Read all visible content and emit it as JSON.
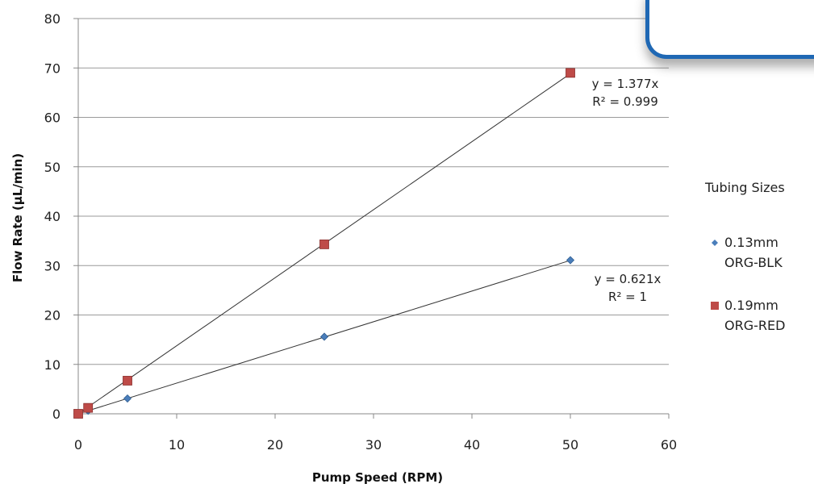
{
  "chart_data": {
    "type": "scatter",
    "xlabel": "Pump Speed (RPM)",
    "ylabel": "Flow Rate (µL/min)",
    "xlim": [
      0,
      60
    ],
    "ylim": [
      0,
      80
    ],
    "x_ticks": [
      "0",
      "10",
      "20",
      "30",
      "40",
      "50",
      "60"
    ],
    "y_ticks": [
      "0",
      "10",
      "20",
      "30",
      "40",
      "50",
      "60",
      "70",
      "80"
    ],
    "grid": "horizontal",
    "legend": {
      "title": "Tubing Sizes",
      "placement": "right"
    },
    "series": [
      {
        "name": "0.13mm ORG-BLK",
        "name_lines": [
          "0.13mm",
          "ORG-BLK"
        ],
        "marker": "diamond",
        "color": "#4a7ebb",
        "x": [
          0,
          1,
          5,
          25,
          50
        ],
        "y": [
          0,
          0.62,
          3.1,
          15.6,
          31.1
        ],
        "trendline": {
          "slope": 0.621,
          "equation": "y = 0.621x",
          "r2": "R² = 1"
        }
      },
      {
        "name": "0.19mm ORG-RED",
        "name_lines": [
          "0.19mm",
          "ORG-RED"
        ],
        "marker": "square",
        "color": "#be4b48",
        "x": [
          0,
          1,
          5,
          25,
          50
        ],
        "y": [
          0,
          1.2,
          6.7,
          34.3,
          69
        ],
        "trendline": {
          "slope": 1.377,
          "equation": "y = 1.377x",
          "r2": "R² = 0.999"
        }
      }
    ]
  }
}
